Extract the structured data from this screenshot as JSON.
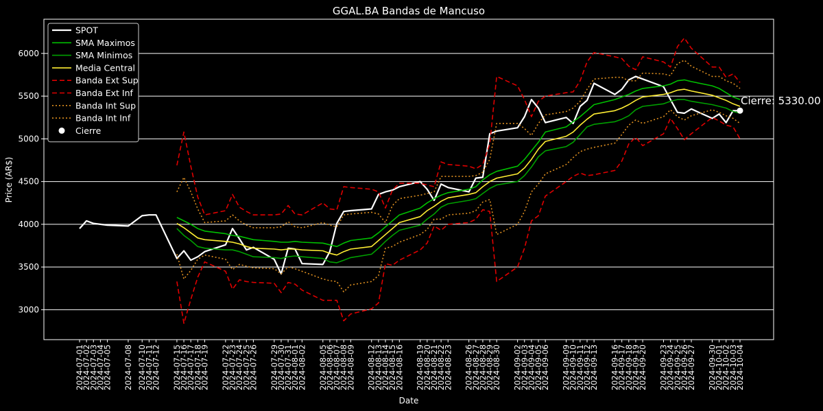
{
  "chart_data": {
    "type": "line",
    "title": "GGAL.BA Bandas de Mancuso",
    "xlabel": "Date",
    "ylabel": "Price (AR$)",
    "ylim": [
      2650,
      6400
    ],
    "yticks": [
      3000,
      3500,
      4000,
      4500,
      5000,
      5500,
      6000
    ],
    "grid": "horizontal",
    "legend_position": "top-left",
    "annotation": "Cierre: 5330.00",
    "dates": [
      "2024-07-01",
      "2024-07-02",
      "2024-07-03",
      "2024-07-04",
      "2024-07-05",
      "2024-07-08",
      "2024-07-10",
      "2024-07-11",
      "2024-07-12",
      "2024-07-15",
      "2024-07-16",
      "2024-07-17",
      "2024-07-18",
      "2024-07-19",
      "2024-07-22",
      "2024-07-23",
      "2024-07-24",
      "2024-07-25",
      "2024-07-26",
      "2024-07-29",
      "2024-07-30",
      "2024-07-31",
      "2024-08-01",
      "2024-08-02",
      "2024-08-05",
      "2024-08-06",
      "2024-08-07",
      "2024-08-08",
      "2024-08-09",
      "2024-08-12",
      "2024-08-13",
      "2024-08-14",
      "2024-08-15",
      "2024-08-16",
      "2024-08-19",
      "2024-08-20",
      "2024-08-21",
      "2024-08-22",
      "2024-08-23",
      "2024-08-26",
      "2024-08-27",
      "2024-08-28",
      "2024-08-29",
      "2024-08-30",
      "2024-09-02",
      "2024-09-03",
      "2024-09-04",
      "2024-09-05",
      "2024-09-06",
      "2024-09-09",
      "2024-09-10",
      "2024-09-11",
      "2024-09-12",
      "2024-09-13",
      "2024-09-16",
      "2024-09-17",
      "2024-09-18",
      "2024-09-19",
      "2024-09-20",
      "2024-09-23",
      "2024-09-24",
      "2024-09-25",
      "2024-09-26",
      "2024-09-27",
      "2024-09-30",
      "2024-10-01",
      "2024-10-02",
      "2024-10-03",
      "2024-10-04"
    ],
    "xtick_labels": [
      "2024-07-01",
      "2024-07-02",
      "2024-07-03",
      "2024-07-04",
      "2024-07-05",
      "2024-07-08",
      "2024-07-10",
      "2024-07-11",
      "2024-07-12",
      "2024-07-15",
      "2024-07-16",
      "2024-07-17",
      "2024-07-18",
      "2024-07-19",
      "2024-07-22",
      "2024-07-23",
      "2024-07-24",
      "2024-07-25",
      "2024-07-26",
      "2024-07-29",
      "2024-07-30",
      "2024-07-31",
      "2024-08-01",
      "2024-08-02",
      "2024-08-05",
      "2024-08-06",
      "2024-08-07",
      "2024-08-08",
      "2024-08-09",
      "2024-08-12",
      "2024-08-13",
      "2024-08-14",
      "2024-08-15",
      "2024-08-16",
      "2024-08-19",
      "2024-08-20",
      "2024-08-21",
      "2024-08-22",
      "2024-08-23",
      "2024-08-26",
      "2024-08-27",
      "2024-08-28",
      "2024-08-29",
      "2024-08-30",
      "2024-09-02",
      "2024-09-03",
      "2024-09-04",
      "2024-09-05",
      "2024-09-06",
      "2024-09-09",
      "2024-09-10",
      "2024-09-11",
      "2024-09-12",
      "2024-09-13",
      "2024-09-16",
      "2024-09-17",
      "2024-09-18",
      "2024-09-19",
      "2024-09-20",
      "2024-09-23",
      "2024-09-24",
      "2024-09-25",
      "2024-09-26",
      "2024-09-27",
      "2024-09-30",
      "2024-10-01",
      "2024-10-02",
      "2024-10-03",
      "2024-10-04"
    ],
    "series": [
      {
        "name": "SPOT",
        "color": "#ffffff",
        "style": "solid",
        "values": [
          3950,
          4040,
          4010,
          4000,
          3990,
          3980,
          4100,
          4110,
          4110,
          3600,
          3690,
          3580,
          3620,
          3680,
          3760,
          3950,
          3830,
          3700,
          3730,
          3590,
          3420,
          3720,
          3710,
          3540,
          3530,
          3680,
          4010,
          4150,
          4160,
          4180,
          4350,
          4380,
          4400,
          4440,
          4500,
          4410,
          4280,
          4470,
          4430,
          4380,
          4540,
          4550,
          5060,
          5090,
          5130,
          5260,
          5460,
          5360,
          5190,
          5250,
          5180,
          5380,
          5450,
          5650,
          5520,
          5580,
          5690,
          5730,
          5700,
          5610,
          5460,
          5310,
          5300,
          5350,
          5240,
          5290,
          5190,
          5330,
          5330
        ]
      },
      {
        "name": "SMA Maximos",
        "color": "#00c000",
        "style": "solid",
        "values": [
          null,
          null,
          null,
          null,
          null,
          null,
          null,
          null,
          null,
          4080,
          4040,
          4000,
          3950,
          3920,
          3890,
          3870,
          3860,
          3840,
          3820,
          3800,
          3790,
          3790,
          3800,
          3790,
          3780,
          3760,
          3740,
          3780,
          3810,
          3840,
          3900,
          3970,
          4040,
          4110,
          4190,
          4250,
          4300,
          4340,
          4370,
          4410,
          4440,
          4520,
          4580,
          4620,
          4680,
          4760,
          4860,
          4960,
          5080,
          5140,
          5200,
          5260,
          5330,
          5400,
          5460,
          5490,
          5520,
          5560,
          5590,
          5620,
          5640,
          5680,
          5690,
          5670,
          5620,
          5590,
          5540,
          5490,
          5460
        ]
      },
      {
        "name": "SMA Minimos",
        "color": "#00a000",
        "style": "solid",
        "values": [
          null,
          null,
          null,
          null,
          null,
          null,
          null,
          null,
          null,
          3950,
          3870,
          3810,
          3740,
          3720,
          3700,
          3700,
          3680,
          3650,
          3620,
          3610,
          3600,
          3620,
          3630,
          3620,
          3600,
          3560,
          3550,
          3580,
          3610,
          3650,
          3720,
          3800,
          3870,
          3930,
          3990,
          4060,
          4120,
          4200,
          4240,
          4280,
          4300,
          4360,
          4420,
          4460,
          4500,
          4570,
          4670,
          4790,
          4860,
          4910,
          4960,
          5050,
          5140,
          5170,
          5200,
          5230,
          5270,
          5340,
          5380,
          5410,
          5440,
          5460,
          5460,
          5440,
          5400,
          5380,
          5360,
          5320,
          5300
        ]
      },
      {
        "name": "Media Central",
        "color": "#ffee33",
        "style": "solid",
        "values": [
          null,
          null,
          null,
          null,
          null,
          null,
          null,
          null,
          null,
          4010,
          3960,
          3900,
          3840,
          3820,
          3800,
          3790,
          3770,
          3740,
          3720,
          3710,
          3700,
          3710,
          3710,
          3700,
          3690,
          3660,
          3640,
          3680,
          3710,
          3740,
          3810,
          3880,
          3950,
          4020,
          4090,
          4160,
          4210,
          4270,
          4310,
          4350,
          4370,
          4440,
          4500,
          4540,
          4590,
          4660,
          4760,
          4880,
          4970,
          5030,
          5080,
          5160,
          5230,
          5290,
          5330,
          5360,
          5400,
          5450,
          5490,
          5520,
          5540,
          5570,
          5580,
          5560,
          5510,
          5480,
          5450,
          5410,
          5380
        ]
      },
      {
        "name": "Banda Ext Sup",
        "color": "#e00000",
        "style": "dashed",
        "values": [
          null,
          null,
          null,
          null,
          null,
          null,
          null,
          null,
          null,
          4690,
          5080,
          4680,
          4320,
          4110,
          4160,
          4350,
          4200,
          4150,
          4110,
          4110,
          4120,
          4220,
          4120,
          4110,
          4250,
          4180,
          4170,
          4440,
          4430,
          4410,
          4380,
          4190,
          4400,
          4480,
          4480,
          4460,
          4440,
          4730,
          4700,
          4680,
          4650,
          4700,
          4940,
          5730,
          5620,
          5460,
          5260,
          5440,
          5500,
          5540,
          5550,
          5680,
          5900,
          6010,
          5960,
          5940,
          5850,
          5810,
          5960,
          5900,
          5840,
          6080,
          6180,
          6060,
          5840,
          5840,
          5720,
          5760,
          5660
        ]
      },
      {
        "name": "Banda Ext Inf",
        "color": "#e00000",
        "style": "dashed",
        "values": [
          null,
          null,
          null,
          null,
          null,
          null,
          null,
          null,
          null,
          3330,
          2840,
          3120,
          3380,
          3560,
          3450,
          3240,
          3350,
          3330,
          3320,
          3310,
          3200,
          3320,
          3300,
          3230,
          3110,
          3110,
          3110,
          2870,
          2950,
          3010,
          3080,
          3540,
          3520,
          3580,
          3700,
          3780,
          3980,
          3930,
          4000,
          4020,
          4060,
          4170,
          4150,
          3330,
          3500,
          3720,
          4040,
          4100,
          4330,
          4500,
          4560,
          4600,
          4570,
          4580,
          4630,
          4740,
          4940,
          5020,
          4920,
          5060,
          5240,
          5120,
          4990,
          5060,
          5250,
          5210,
          5160,
          5140,
          5000
        ]
      },
      {
        "name": "Banda Int Sup",
        "color": "#e09020",
        "style": "dotted",
        "values": [
          null,
          null,
          null,
          null,
          null,
          null,
          null,
          null,
          null,
          4380,
          4550,
          4380,
          4180,
          4020,
          4040,
          4110,
          4040,
          3990,
          3960,
          3960,
          3970,
          4030,
          3970,
          3960,
          4020,
          3990,
          3970,
          4110,
          4120,
          4140,
          4120,
          4020,
          4220,
          4300,
          4340,
          4360,
          4380,
          4560,
          4560,
          4560,
          4570,
          4610,
          4760,
          5180,
          5180,
          5120,
          5040,
          5180,
          5280,
          5320,
          5360,
          5440,
          5580,
          5700,
          5720,
          5720,
          5680,
          5680,
          5770,
          5760,
          5740,
          5880,
          5920,
          5850,
          5730,
          5730,
          5680,
          5650,
          5590
        ]
      },
      {
        "name": "Banda Int Inf",
        "color": "#e09020",
        "style": "dotted",
        "values": [
          null,
          null,
          null,
          null,
          null,
          null,
          null,
          null,
          null,
          3650,
          3360,
          3460,
          3590,
          3640,
          3590,
          3470,
          3530,
          3510,
          3490,
          3480,
          3420,
          3500,
          3480,
          3450,
          3360,
          3340,
          3330,
          3210,
          3290,
          3330,
          3400,
          3720,
          3740,
          3790,
          3880,
          3940,
          4060,
          4060,
          4110,
          4130,
          4160,
          4260,
          4290,
          3880,
          4000,
          4150,
          4380,
          4470,
          4590,
          4700,
          4780,
          4850,
          4880,
          4900,
          4950,
          5050,
          5160,
          5220,
          5180,
          5260,
          5340,
          5260,
          5220,
          5270,
          5340,
          5310,
          5270,
          5240,
          5180
        ]
      }
    ],
    "cierre": {
      "name": "Cierre",
      "date": "2024-10-04",
      "value": 5330,
      "color": "#ffffff"
    }
  }
}
